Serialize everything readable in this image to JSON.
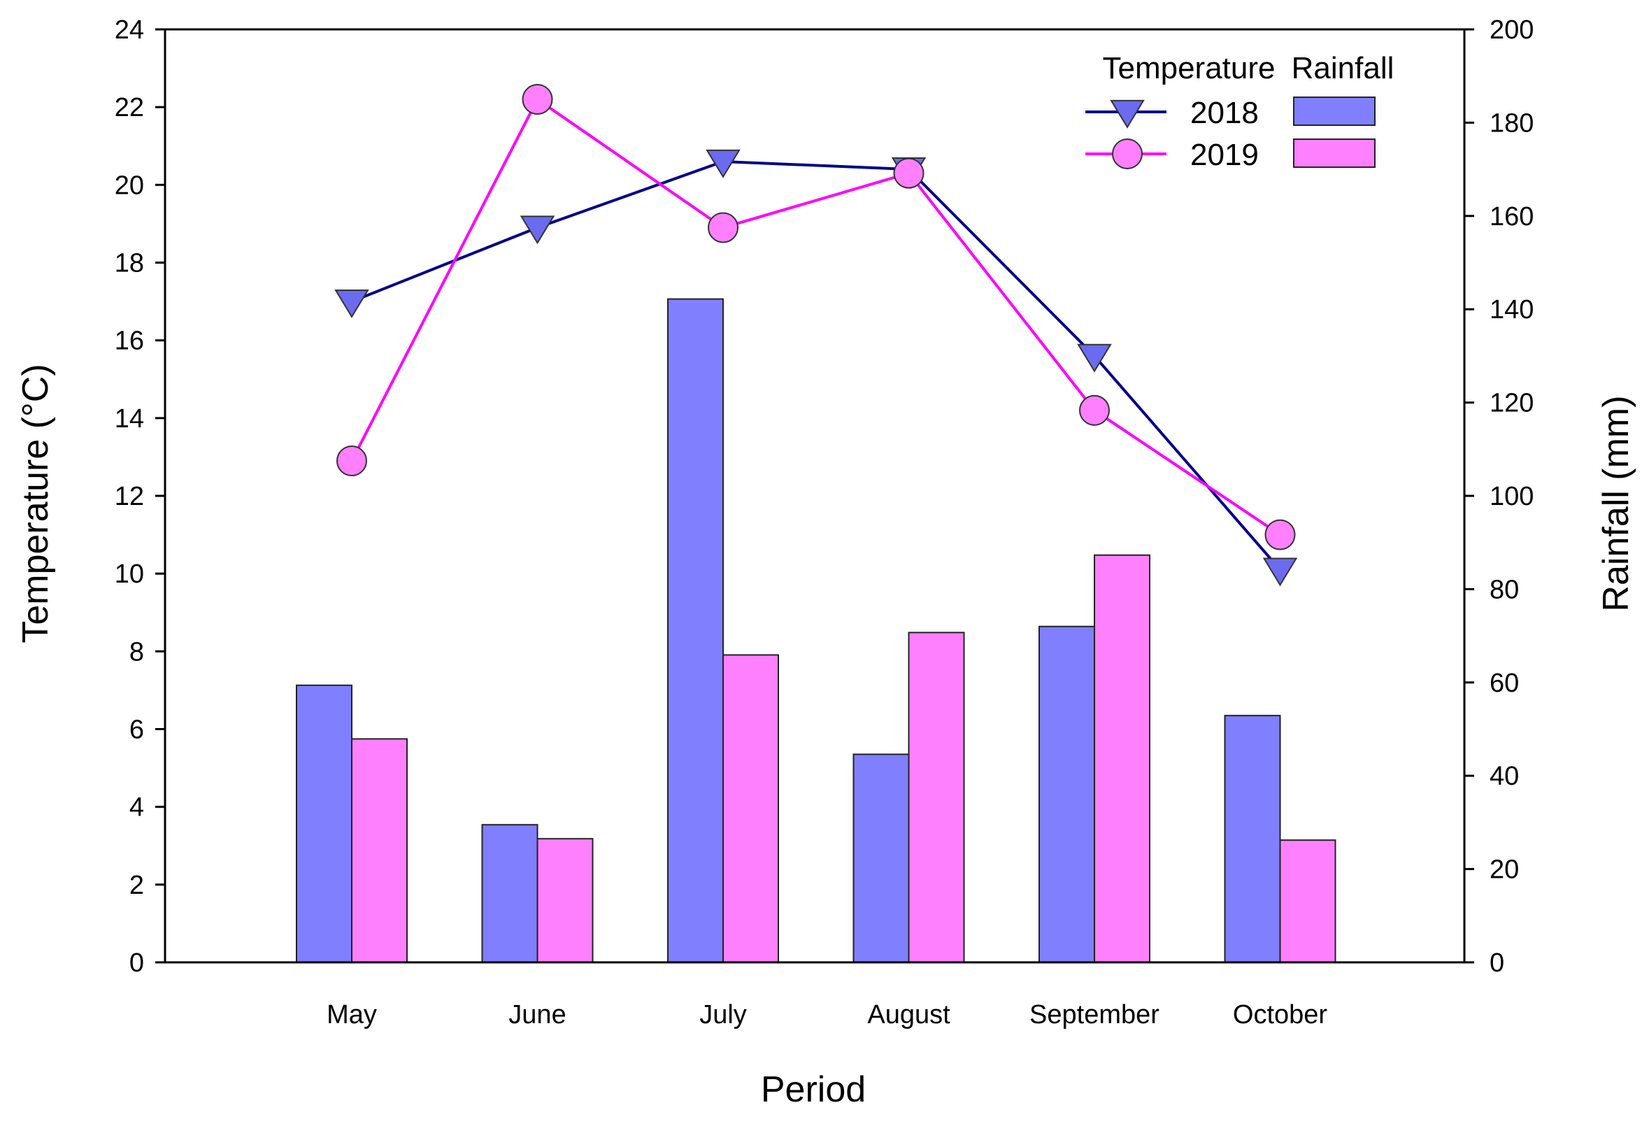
{
  "chart_data": {
    "type": "bar+line",
    "xlabel": "Period",
    "categories": [
      "May",
      "June",
      "July",
      "August",
      "September",
      "October"
    ],
    "y_left": {
      "label": "Temperature (°C)",
      "range": [
        0,
        24
      ],
      "ticks": [
        0,
        2,
        4,
        6,
        8,
        10,
        12,
        14,
        16,
        18,
        20,
        22,
        24
      ]
    },
    "y_right": {
      "label": "Rainfall (mm)",
      "range": [
        0,
        200
      ],
      "ticks": [
        0,
        20,
        40,
        60,
        80,
        100,
        120,
        140,
        160,
        180,
        200
      ]
    },
    "temperature_series": [
      {
        "name": "2018",
        "color": "#00008b",
        "marker_color": "#6b6bf0",
        "marker": "triangle-down",
        "values": [
          17.0,
          18.9,
          20.6,
          20.4,
          15.6,
          10.1
        ]
      },
      {
        "name": "2019",
        "color": "#ff00ff",
        "marker_color": "#ff80ff",
        "marker": "circle",
        "values": [
          12.9,
          22.2,
          18.9,
          20.3,
          14.2,
          11.0
        ]
      }
    ],
    "rainfall_series": [
      {
        "name": "2018",
        "color": "#8080ff",
        "values": [
          59.4,
          29.5,
          142.2,
          44.6,
          72.0,
          52.9
        ]
      },
      {
        "name": "2019",
        "color": "#ff80ff",
        "values": [
          47.9,
          26.5,
          65.9,
          70.7,
          87.3,
          26.2
        ]
      }
    ],
    "legend": {
      "position": "top-right",
      "temperature_header": "Temperature",
      "rainfall_header": "Rainfall"
    }
  }
}
